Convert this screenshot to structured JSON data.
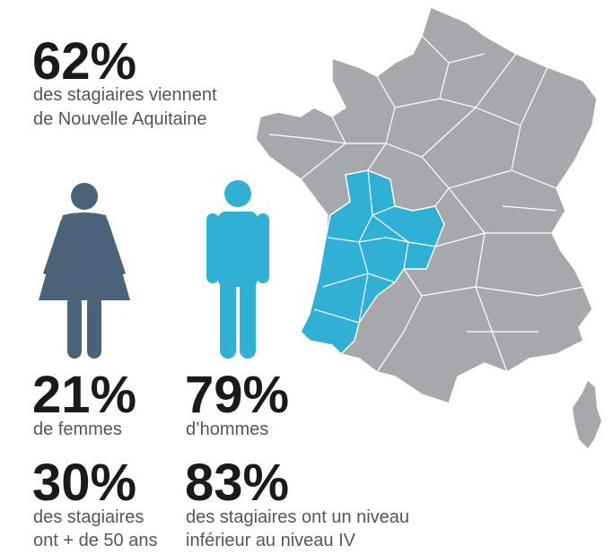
{
  "headline": {
    "value": "62%",
    "lines": [
      "des stagiaires viennent",
      "de Nouvelle Aquitaine"
    ]
  },
  "stats": [
    {
      "value": "21%",
      "lines": [
        "de femmes"
      ]
    },
    {
      "value": "79%",
      "lines": [
        "d’hommes"
      ]
    },
    {
      "value": "30%",
      "lines": [
        "des stagiaires",
        "ont + de 50 ans"
      ]
    },
    {
      "value": "83%",
      "lines": [
        "des stagiaires ont un niveau",
        "inférieur au niveau IV"
      ]
    }
  ]
}
